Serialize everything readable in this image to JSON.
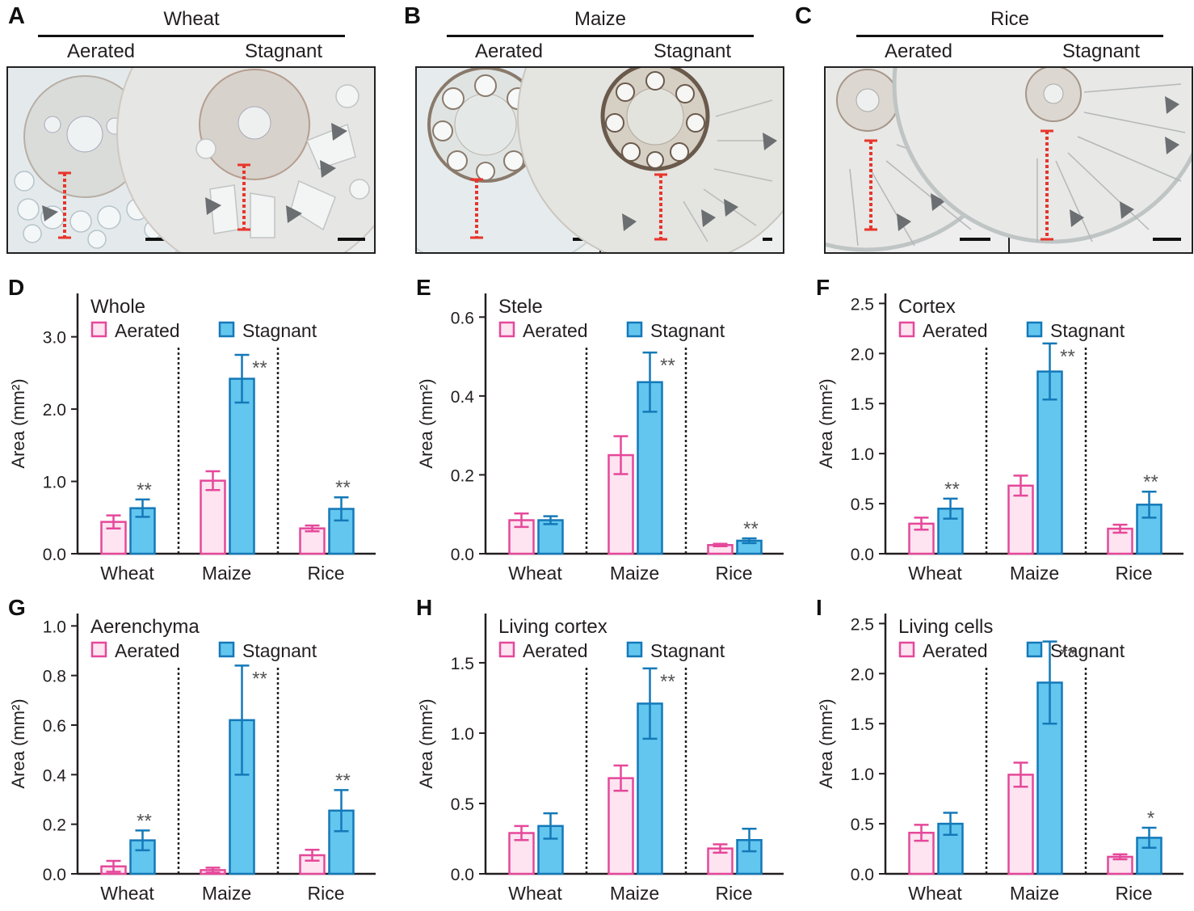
{
  "panels_top": [
    {
      "letter": "A",
      "species": "Wheat",
      "left": "Aerated",
      "right": "Stagnant"
    },
    {
      "letter": "B",
      "species": "Maize",
      "left": "Aerated",
      "right": "Stagnant"
    },
    {
      "letter": "C",
      "species": "Rice",
      "left": "Aerated",
      "right": "Stagnant"
    }
  ],
  "legend": {
    "aerated": "Aerated",
    "stagnant": "Stagnant"
  },
  "colors": {
    "aerated_stroke": "#e5489a",
    "aerated_fill": "#fde4f0",
    "stagnant_stroke": "#1479b8",
    "stagnant_fill": "#62c6ef"
  },
  "chart_data": [
    {
      "letter": "D",
      "type": "bar",
      "title": "Whole",
      "ylabel": "Area (mm²)",
      "categories": [
        "Wheat",
        "Maize",
        "Rice"
      ],
      "ylim": [
        0,
        3.6
      ],
      "yticks": [
        0,
        1,
        2,
        3
      ],
      "ytick_labels": [
        "0.0",
        "1.0",
        "2.0",
        "3.0"
      ],
      "series": [
        {
          "name": "Aerated",
          "values": [
            0.44,
            1.01,
            0.35
          ],
          "errors": [
            0.09,
            0.13,
            0.04
          ]
        },
        {
          "name": "Stagnant",
          "values": [
            0.63,
            2.42,
            0.62
          ],
          "errors": [
            0.12,
            0.33,
            0.16
          ]
        }
      ],
      "significance": [
        "**",
        "**",
        "**"
      ]
    },
    {
      "letter": "E",
      "type": "bar",
      "title": "Stele",
      "ylabel": "Area (mm²)",
      "categories": [
        "Wheat",
        "Maize",
        "Rice"
      ],
      "ylim": [
        0,
        0.66
      ],
      "yticks": [
        0,
        0.2,
        0.4,
        0.6
      ],
      "ytick_labels": [
        "0.0",
        "0.2",
        "0.4",
        "0.6"
      ],
      "series": [
        {
          "name": "Aerated",
          "values": [
            0.085,
            0.25,
            0.022
          ],
          "errors": [
            0.017,
            0.048,
            0.003
          ]
        },
        {
          "name": "Stagnant",
          "values": [
            0.085,
            0.435,
            0.033
          ],
          "errors": [
            0.01,
            0.075,
            0.006
          ]
        }
      ],
      "significance": [
        "",
        "**",
        "**"
      ]
    },
    {
      "letter": "F",
      "type": "bar",
      "title": "Cortex",
      "ylabel": "Area (mm²)",
      "categories": [
        "Wheat",
        "Maize",
        "Rice"
      ],
      "ylim": [
        0,
        2.6
      ],
      "yticks": [
        0,
        0.5,
        1,
        1.5,
        2,
        2.5
      ],
      "ytick_labels": [
        "0.0",
        "0.5",
        "1.0",
        "1.5",
        "2.0",
        "2.5"
      ],
      "series": [
        {
          "name": "Aerated",
          "values": [
            0.3,
            0.68,
            0.25
          ],
          "errors": [
            0.06,
            0.1,
            0.04
          ]
        },
        {
          "name": "Stagnant",
          "values": [
            0.45,
            1.82,
            0.49
          ],
          "errors": [
            0.1,
            0.28,
            0.13
          ]
        }
      ],
      "significance": [
        "**",
        "**",
        "**"
      ]
    },
    {
      "letter": "G",
      "type": "bar",
      "title": "Aerenchyma",
      "ylabel": "Area (mm²)",
      "categories": [
        "Wheat",
        "Maize",
        "Rice"
      ],
      "ylim": [
        0,
        1.05
      ],
      "yticks": [
        0,
        0.2,
        0.4,
        0.6,
        0.8,
        1.0
      ],
      "ytick_labels": [
        "0.0",
        "0.2",
        "0.4",
        "0.6",
        "0.8",
        "1.0"
      ],
      "series": [
        {
          "name": "Aerated",
          "values": [
            0.03,
            0.015,
            0.075
          ],
          "errors": [
            0.022,
            0.01,
            0.022
          ]
        },
        {
          "name": "Stagnant",
          "values": [
            0.135,
            0.62,
            0.255
          ],
          "errors": [
            0.04,
            0.22,
            0.083
          ]
        }
      ],
      "significance": [
        "**",
        "**",
        "**"
      ]
    },
    {
      "letter": "H",
      "type": "bar",
      "title": "Living cortex",
      "ylabel": "Area (mm²)",
      "categories": [
        "Wheat",
        "Maize",
        "Rice"
      ],
      "ylim": [
        0,
        1.85
      ],
      "yticks": [
        0,
        0.5,
        1,
        1.5
      ],
      "ytick_labels": [
        "0.0",
        "0.5",
        "1.0",
        "1.5"
      ],
      "series": [
        {
          "name": "Aerated",
          "values": [
            0.29,
            0.68,
            0.18
          ],
          "errors": [
            0.05,
            0.09,
            0.03
          ]
        },
        {
          "name": "Stagnant",
          "values": [
            0.34,
            1.21,
            0.24
          ],
          "errors": [
            0.09,
            0.25,
            0.08
          ]
        }
      ],
      "significance": [
        "",
        "**",
        ""
      ]
    },
    {
      "letter": "I",
      "type": "bar",
      "title": "Living cells",
      "ylabel": "Area (mm²)",
      "categories": [
        "Wheat",
        "Maize",
        "Rice"
      ],
      "ylim": [
        0,
        2.6
      ],
      "yticks": [
        0,
        0.5,
        1,
        1.5,
        2,
        2.5
      ],
      "ytick_labels": [
        "0.0",
        "0.5",
        "1.0",
        "1.5",
        "2.0",
        "2.5"
      ],
      "series": [
        {
          "name": "Aerated",
          "values": [
            0.41,
            0.99,
            0.17
          ],
          "errors": [
            0.08,
            0.12,
            0.025
          ]
        },
        {
          "name": "Stagnant",
          "values": [
            0.5,
            1.91,
            0.36
          ],
          "errors": [
            0.11,
            0.41,
            0.1
          ]
        }
      ],
      "significance": [
        "",
        "**",
        "*"
      ]
    }
  ]
}
